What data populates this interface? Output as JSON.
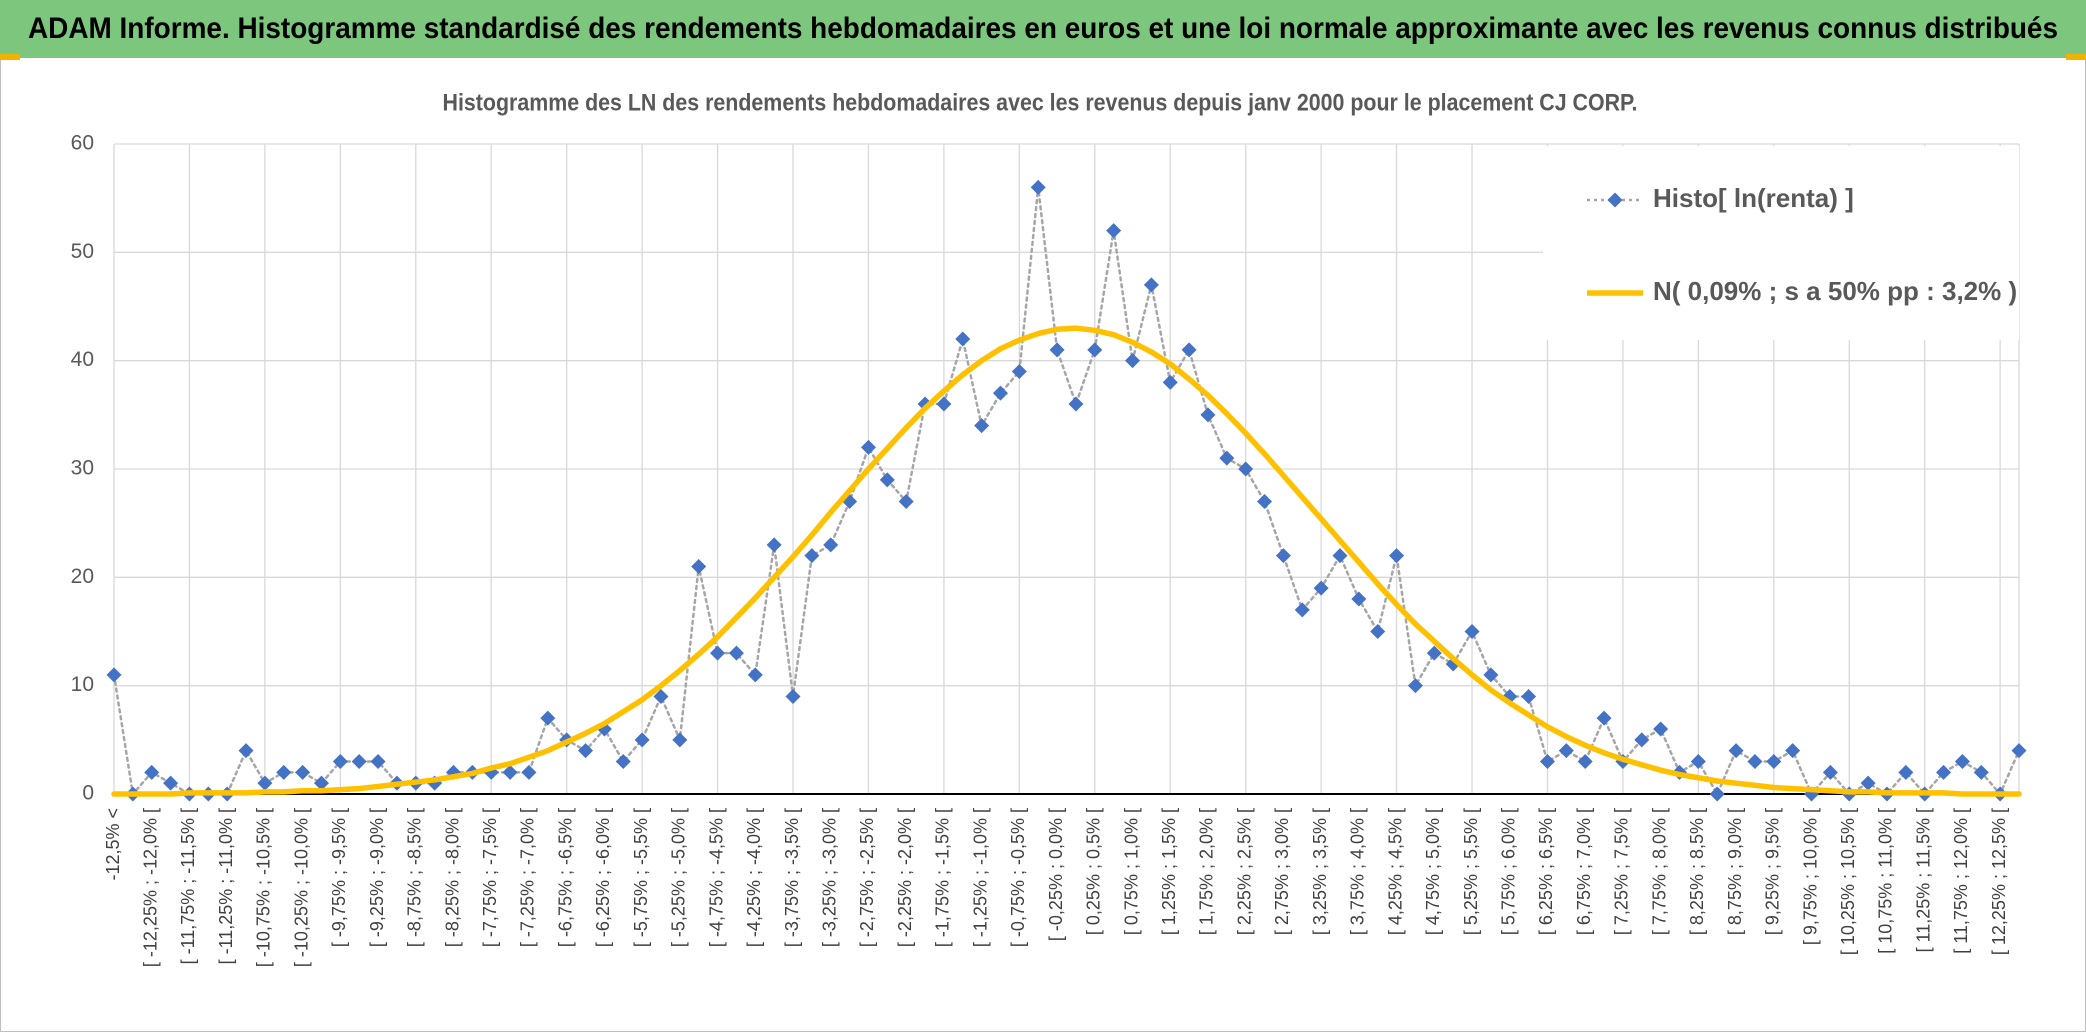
{
  "header": {
    "title": "ADAM Informe. Histogramme standardisé des rendements hebdomadaires en euros et une loi normale approximante avec les revenus connus distribués"
  },
  "chart_data": {
    "type": "line",
    "title": "Histogramme des LN des rendements hebdomadaires avec les revenus depuis janv 2000 pour le placement CJ CORP.",
    "categories": [
      "-12,5% <",
      null,
      "[ -12,25% ; -12,0% [",
      null,
      "[ -11,75% ; -11,5% [",
      null,
      "[ -11,25% ; -11,0% [",
      null,
      "[ -10,75% ; -10,5% [",
      null,
      "[ -10,25% ; -10,0% [",
      null,
      "[ -9,75% ; -9,5% [",
      null,
      "[ -9,25% ; -9,0% [",
      null,
      "[ -8,75% ; -8,5% [",
      null,
      "[ -8,25% ; -8,0% [",
      null,
      "[ -7,75% ; -7,5% [",
      null,
      "[ -7,25% ; -7,0% [",
      null,
      "[ -6,75% ; -6,5% [",
      null,
      "[ -6,25% ; -6,0% [",
      null,
      "[ -5,75% ; -5,5% [",
      null,
      "[ -5,25% ; -5,0% [",
      null,
      "[ -4,75% ; -4,5% [",
      null,
      "[ -4,25% ; -4,0% [",
      null,
      "[ -3,75% ; -3,5% [",
      null,
      "[ -3,25% ; -3,0% [",
      null,
      "[ -2,75% ; -2,5% [",
      null,
      "[ -2,25% ; -2,0% [",
      null,
      "[ -1,75% ; -1,5% [",
      null,
      "[ -1,25% ; -1,0% [",
      null,
      "[ -0,75% ; -0,5% [",
      null,
      "[ -0,25% ; 0,0% [",
      null,
      "[ 0,25% ; 0,5% [",
      null,
      "[ 0,75% ; 1,0% [",
      null,
      "[ 1,25% ; 1,5% [",
      null,
      "[ 1,75% ; 2,0% [",
      null,
      "[ 2,25% ; 2,5% [",
      null,
      "[ 2,75% ; 3,0% [",
      null,
      "[ 3,25% ; 3,5% [",
      null,
      "[ 3,75% ; 4,0% [",
      null,
      "[ 4,25% ; 4,5% [",
      null,
      "[ 4,75% ; 5,0% [",
      null,
      "[ 5,25% ; 5,5% [",
      null,
      "[ 5,75% ; 6,0% [",
      null,
      "[ 6,25% ; 6,5% [",
      null,
      "[ 6,75% ; 7,0% [",
      null,
      "[ 7,25% ; 7,5% [",
      null,
      "[ 7,75% ; 8,0% [",
      null,
      "[ 8,25% ; 8,5% [",
      null,
      "[ 8,75% ; 9,0% [",
      null,
      "[ 9,25% ; 9,5% [",
      null,
      "[ 9,75% ; 10,0% [",
      null,
      "[ 10,25% ; 10,5% [",
      null,
      "[ 10,75% ; 11,0% [",
      null,
      "[ 11,25% ; 11,5% [",
      null,
      "[ 11,75% ; 12,0% [",
      null,
      "[ 12,25% ; 12,5% [",
      null
    ],
    "series": [
      {
        "name": "Histo[ ln(renta) ]",
        "color": "#4472c4",
        "line_color": "#a6a6a6",
        "marker": "diamond",
        "dash": "dotted",
        "values": [
          11,
          0,
          2,
          1,
          0,
          0,
          0,
          4,
          1,
          2,
          2,
          1,
          3,
          3,
          3,
          1,
          1,
          1,
          2,
          2,
          2,
          2,
          2,
          7,
          5,
          4,
          6,
          3,
          5,
          9,
          5,
          21,
          13,
          13,
          11,
          23,
          9,
          22,
          23,
          27,
          32,
          29,
          27,
          36,
          36,
          42,
          34,
          37,
          39,
          56,
          41,
          36,
          41,
          52,
          40,
          47,
          38,
          41,
          35,
          31,
          30,
          27,
          22,
          17,
          19,
          22,
          18,
          15,
          22,
          10,
          13,
          12,
          15,
          11,
          9,
          9,
          3,
          4,
          3,
          7,
          3,
          5,
          6,
          2,
          3,
          0,
          4,
          3,
          3,
          4,
          0,
          2,
          0,
          1,
          0,
          2,
          0,
          2,
          3,
          2,
          0,
          4
        ]
      },
      {
        "name": "N( 0,09% ; s a 50% pp : 3,2% )",
        "color": "#ffc000",
        "marker": "none",
        "dash": "solid",
        "values": [
          0.0,
          0.0,
          0.0,
          0.0,
          0.1,
          0.1,
          0.1,
          0.1,
          0.2,
          0.2,
          0.3,
          0.3,
          0.4,
          0.5,
          0.7,
          0.9,
          1.1,
          1.3,
          1.6,
          1.9,
          2.4,
          2.8,
          3.4,
          4.0,
          4.8,
          5.6,
          6.5,
          7.6,
          8.7,
          10.0,
          11.4,
          12.9,
          14.5,
          16.3,
          18.1,
          20.0,
          21.9,
          23.9,
          26.0,
          28.0,
          30.0,
          31.9,
          33.8,
          35.6,
          37.2,
          38.7,
          40.0,
          41.1,
          41.9,
          42.5,
          42.9,
          43.0,
          42.8,
          42.4,
          41.7,
          40.8,
          39.7,
          38.3,
          36.8,
          35.1,
          33.3,
          31.4,
          29.4,
          27.4,
          25.4,
          23.4,
          21.4,
          19.4,
          17.5,
          15.7,
          14.1,
          12.5,
          11.0,
          9.6,
          8.4,
          7.3,
          6.2,
          5.3,
          4.5,
          3.8,
          3.2,
          2.7,
          2.2,
          1.8,
          1.5,
          1.2,
          1.0,
          0.8,
          0.6,
          0.5,
          0.4,
          0.3,
          0.2,
          0.2,
          0.1,
          0.1,
          0.1,
          0.1,
          0.0,
          0.0,
          0.0,
          0.0
        ]
      }
    ],
    "ylim": [
      0,
      60
    ],
    "yticks": [
      0,
      10,
      20,
      30,
      40,
      50,
      60
    ],
    "grid": true,
    "legend": "top-right"
  }
}
